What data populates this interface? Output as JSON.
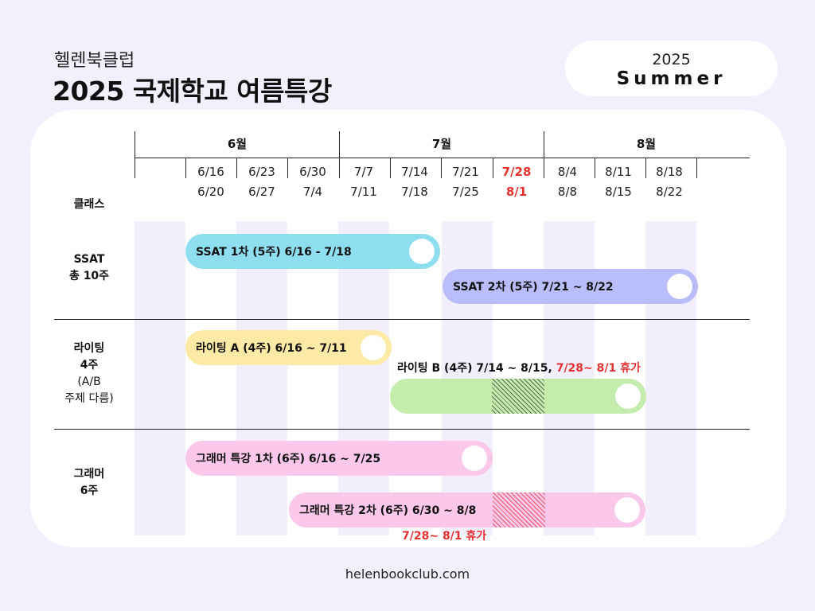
{
  "header": {
    "brand": "헬렌북클럽",
    "title": "2025 국제학교 여름특강",
    "season_year": "2025",
    "season_name": "Summer"
  },
  "timeline": {
    "class_header": "클래스",
    "months": [
      "6월",
      "7월",
      "8월"
    ],
    "weeks": [
      {
        "start": "6/16",
        "end": "6/20"
      },
      {
        "start": "6/23",
        "end": "6/27"
      },
      {
        "start": "6/30",
        "end": "7/4"
      },
      {
        "start": "7/7",
        "end": "7/11"
      },
      {
        "start": "7/14",
        "end": "7/18"
      },
      {
        "start": "7/21",
        "end": "7/25"
      },
      {
        "start": "7/28",
        "end": "8/1",
        "highlight": true
      },
      {
        "start": "8/4",
        "end": "8/8"
      },
      {
        "start": "8/11",
        "end": "8/15"
      },
      {
        "start": "8/18",
        "end": "8/22"
      }
    ]
  },
  "rows": {
    "ssat": {
      "name": "SSAT",
      "detail": "총 10주"
    },
    "writing": {
      "name": "라이팅",
      "weeks": "4주",
      "note1": "(A/B",
      "note2": "주제 다름)"
    },
    "grammar": {
      "name": "그래머",
      "weeks": "6주"
    }
  },
  "bars": {
    "ssat1": "SSAT 1차  (5주) 6/16 - 7/18",
    "ssat2": "SSAT 2차 (5주) 7/21 ~ 8/22",
    "writingA": "라이팅 A (4주) 6/16 ~ 7/11",
    "writingB": "라이팅 B (4주) 7/14 ~ 8/15,",
    "writingB_break": "7/28~ 8/1 휴가",
    "grammar1": "그래머 특강 1차 (6주) 6/16 ~ 7/25",
    "grammar2": "그래머 특강 2차 (6주) 6/30 ~ 8/8",
    "grammar2_break": "7/28~ 8/1 휴가"
  },
  "colors": {
    "background": "#f4effd",
    "ssat1": "#8fdef0",
    "ssat2": "#b9bdfb",
    "writingA": "#fdeaa6",
    "writingB": "#c3ecad",
    "grammar": "#fbc7ea",
    "highlight": "#e53030"
  },
  "footer": {
    "url": "helenbookclub.com"
  }
}
